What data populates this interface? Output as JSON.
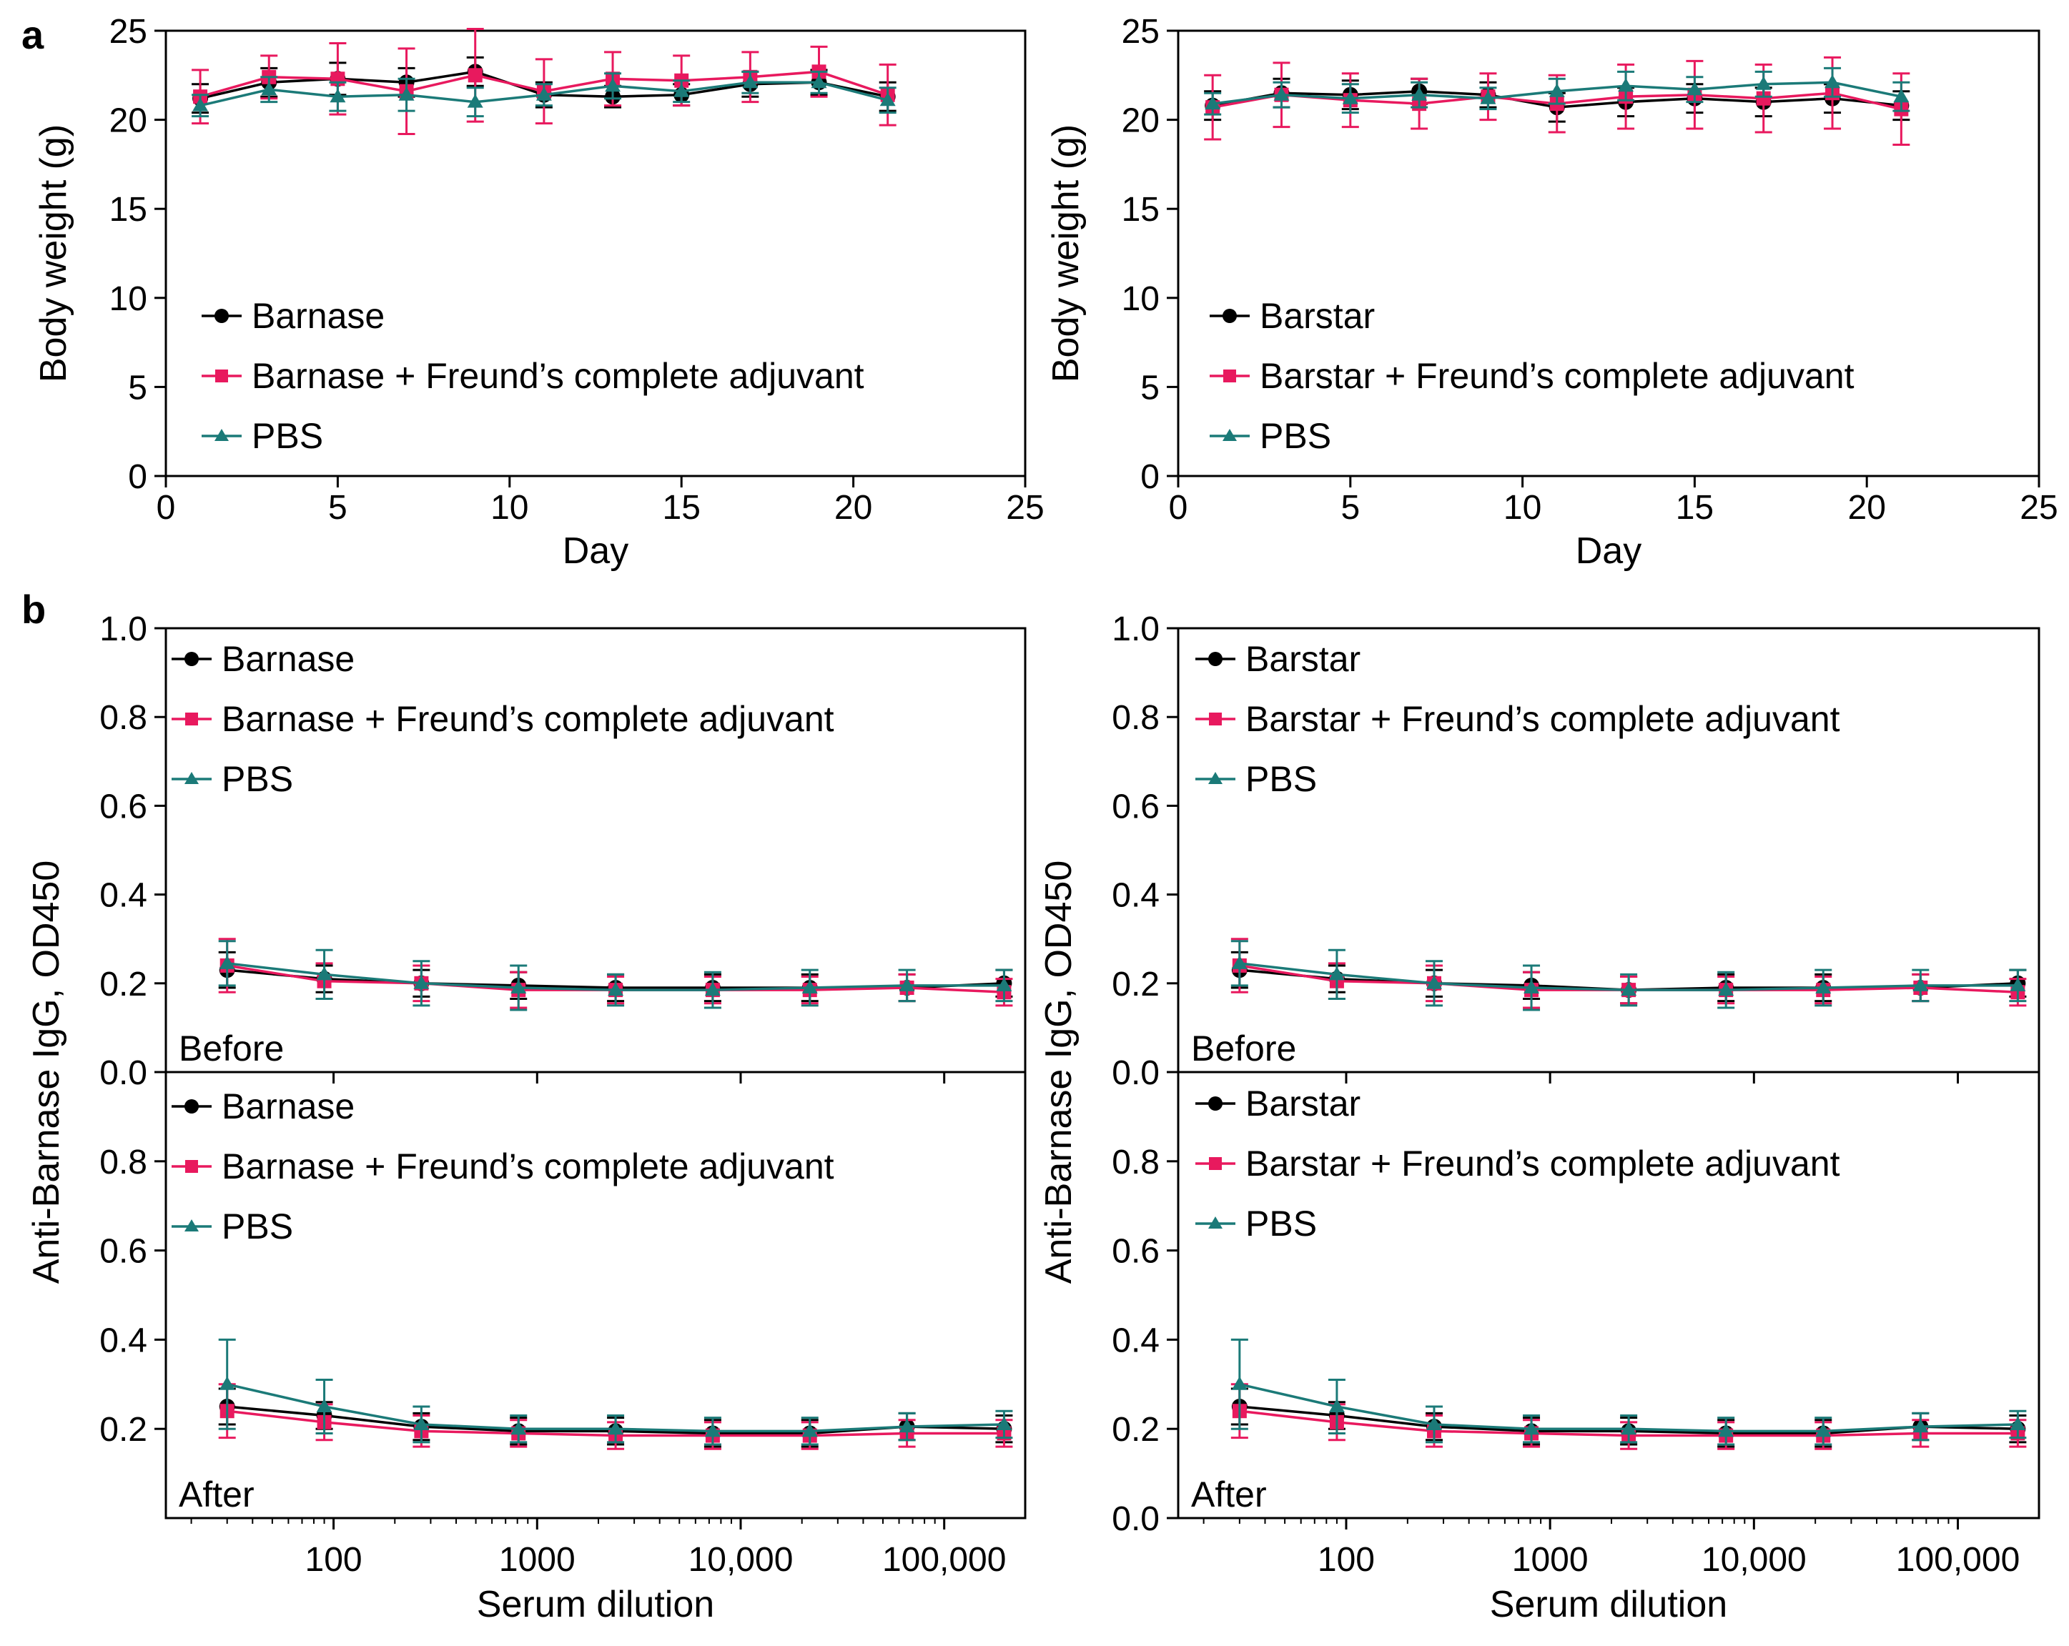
{
  "figure": {
    "panel_a_letter": "a",
    "panel_b_letter": "b"
  },
  "colors": {
    "black": "#000000",
    "magenta": "#e8195e",
    "teal": "#1b7a78",
    "axis": "#000000"
  },
  "chart_data": [
    {
      "id": "a-left",
      "type": "line",
      "xscale": "linear",
      "xlim": [
        0,
        25
      ],
      "xticks": [
        0,
        5,
        10,
        15,
        20,
        25
      ],
      "ylim": [
        0,
        25
      ],
      "yticks": [
        0,
        5,
        10,
        15,
        20,
        25
      ],
      "xlabel": "Day",
      "ylabel": "Body weight (g)",
      "legend": "bottom-left",
      "series": [
        {
          "name": "Barnase",
          "marker": "circle",
          "color": "black",
          "x": [
            1,
            3,
            5,
            7,
            9,
            11,
            13,
            15,
            17,
            19,
            21
          ],
          "y": [
            21.2,
            22.1,
            22.3,
            22.1,
            22.7,
            21.4,
            21.3,
            21.4,
            22.0,
            22.1,
            21.3
          ],
          "err": [
            0.8,
            0.8,
            0.9,
            0.8,
            0.8,
            0.7,
            0.6,
            0.6,
            0.7,
            0.7,
            0.8
          ]
        },
        {
          "name": "Barnase + Freund’s complete adjuvant",
          "marker": "square",
          "color": "magenta",
          "x": [
            1,
            3,
            5,
            7,
            9,
            11,
            13,
            15,
            17,
            19,
            21
          ],
          "y": [
            21.3,
            22.4,
            22.3,
            21.6,
            22.5,
            21.6,
            22.3,
            22.2,
            22.4,
            22.7,
            21.4
          ],
          "err": [
            1.5,
            1.2,
            2.0,
            2.4,
            2.6,
            1.8,
            1.5,
            1.4,
            1.4,
            1.4,
            1.7
          ]
        },
        {
          "name": "PBS",
          "marker": "triangle",
          "color": "teal",
          "x": [
            1,
            3,
            5,
            7,
            9,
            11,
            13,
            15,
            17,
            19,
            21
          ],
          "y": [
            20.8,
            21.7,
            21.3,
            21.4,
            21.0,
            21.4,
            21.9,
            21.6,
            22.1,
            22.1,
            21.1
          ],
          "err": [
            0.6,
            0.7,
            0.8,
            0.9,
            0.8,
            0.6,
            0.7,
            0.6,
            0.6,
            0.6,
            0.7
          ]
        }
      ],
      "legend_labels": [
        "Barnase",
        "Barnase + Freund’s complete adjuvant",
        "PBS"
      ]
    },
    {
      "id": "a-right",
      "type": "line",
      "xscale": "linear",
      "xlim": [
        0,
        25
      ],
      "xticks": [
        0,
        5,
        10,
        15,
        20,
        25
      ],
      "ylim": [
        0,
        25
      ],
      "yticks": [
        0,
        5,
        10,
        15,
        20,
        25
      ],
      "xlabel": "Day",
      "ylabel": "Body weight (g)",
      "legend": "bottom-left",
      "series": [
        {
          "name": "Barstar",
          "marker": "circle",
          "color": "black",
          "x": [
            1,
            3,
            5,
            7,
            9,
            11,
            13,
            15,
            17,
            19,
            21
          ],
          "y": [
            20.8,
            21.5,
            21.4,
            21.6,
            21.4,
            20.7,
            21.0,
            21.2,
            21.0,
            21.2,
            20.8
          ],
          "err": [
            0.8,
            0.8,
            0.8,
            0.7,
            0.7,
            0.8,
            0.8,
            0.8,
            0.8,
            0.8,
            0.8
          ]
        },
        {
          "name": "Barstar + Freund’s complete adjuvant",
          "marker": "square",
          "color": "magenta",
          "x": [
            1,
            3,
            5,
            7,
            9,
            11,
            13,
            15,
            17,
            19,
            21
          ],
          "y": [
            20.7,
            21.4,
            21.1,
            20.9,
            21.3,
            20.9,
            21.3,
            21.4,
            21.2,
            21.5,
            20.6
          ],
          "err": [
            1.8,
            1.8,
            1.5,
            1.4,
            1.3,
            1.6,
            1.8,
            1.9,
            1.9,
            2.0,
            2.0
          ]
        },
        {
          "name": "PBS",
          "marker": "triangle",
          "color": "teal",
          "x": [
            1,
            3,
            5,
            7,
            9,
            11,
            13,
            15,
            17,
            19,
            21
          ],
          "y": [
            20.9,
            21.4,
            21.2,
            21.4,
            21.2,
            21.6,
            21.9,
            21.7,
            22.0,
            22.1,
            21.3
          ],
          "err": [
            0.6,
            0.7,
            0.8,
            0.7,
            0.6,
            0.7,
            0.8,
            0.7,
            0.7,
            0.8,
            0.8
          ]
        }
      ],
      "legend_labels": [
        "Barstar",
        "Barstar + Freund’s complete adjuvant",
        "PBS"
      ]
    },
    {
      "id": "b-left-before",
      "type": "line",
      "xscale": "log",
      "xlim": [
        15,
        250000
      ],
      "xticks": [
        100,
        1000,
        10000,
        100000
      ],
      "xtick_labels": [],
      "ylim": [
        0,
        1.0
      ],
      "yticks": [
        0.0,
        0.2,
        0.4,
        0.6,
        0.8,
        1.0
      ],
      "ytick_labels": [
        "0.0",
        "0.2",
        "0.4",
        "0.6",
        "0.8",
        "1.0"
      ],
      "annotation": "Before",
      "legend": "top-left",
      "series": [
        {
          "name": "Barnase",
          "marker": "circle",
          "color": "black",
          "x": [
            30,
            90,
            270,
            810,
            2430,
            7290,
            21870,
            65610,
            196830
          ],
          "y": [
            0.23,
            0.21,
            0.2,
            0.195,
            0.19,
            0.19,
            0.19,
            0.19,
            0.2
          ],
          "err": [
            0.04,
            0.03,
            0.03,
            0.03,
            0.03,
            0.03,
            0.03,
            0.03,
            0.03
          ]
        },
        {
          "name": "Barnase + Freund’s complete adjuvant",
          "marker": "square",
          "color": "magenta",
          "x": [
            30,
            90,
            270,
            810,
            2430,
            7290,
            21870,
            65610,
            196830
          ],
          "y": [
            0.24,
            0.205,
            0.2,
            0.185,
            0.185,
            0.185,
            0.185,
            0.19,
            0.18
          ],
          "err": [
            0.06,
            0.04,
            0.04,
            0.04,
            0.03,
            0.03,
            0.03,
            0.03,
            0.03
          ]
        },
        {
          "name": "PBS",
          "marker": "triangle",
          "color": "teal",
          "x": [
            30,
            90,
            270,
            810,
            2430,
            7290,
            21870,
            65610,
            196830
          ],
          "y": [
            0.245,
            0.22,
            0.2,
            0.19,
            0.185,
            0.185,
            0.19,
            0.195,
            0.195
          ],
          "err": [
            0.05,
            0.055,
            0.05,
            0.05,
            0.035,
            0.04,
            0.04,
            0.035,
            0.035
          ]
        }
      ],
      "legend_labels": [
        "Barnase",
        "Barnase + Freund’s complete adjuvant",
        "PBS"
      ]
    },
    {
      "id": "b-left-after",
      "type": "line",
      "xscale": "log",
      "xlim": [
        15,
        250000
      ],
      "xticks": [
        100,
        1000,
        10000,
        100000
      ],
      "xtick_labels": [
        "100",
        "1000",
        "10,000",
        "100,000"
      ],
      "ylim": [
        0,
        1.0
      ],
      "yticks": [
        0.2,
        0.4,
        0.6,
        0.8
      ],
      "ytick_labels": [
        "0.2",
        "0.4",
        "0.6",
        "0.8"
      ],
      "xlabel": "Serum dilution",
      "annotation": "After",
      "legend": "top-left",
      "series": [
        {
          "name": "Barnase",
          "marker": "circle",
          "color": "black",
          "x": [
            30,
            90,
            270,
            810,
            2430,
            7290,
            21870,
            65610,
            196830
          ],
          "y": [
            0.25,
            0.23,
            0.205,
            0.195,
            0.195,
            0.19,
            0.19,
            0.205,
            0.2
          ],
          "err": [
            0.04,
            0.03,
            0.03,
            0.03,
            0.03,
            0.03,
            0.03,
            0.03,
            0.03
          ]
        },
        {
          "name": "Barnase + Freund’s complete adjuvant",
          "marker": "square",
          "color": "magenta",
          "x": [
            30,
            90,
            270,
            810,
            2430,
            7290,
            21870,
            65610,
            196830
          ],
          "y": [
            0.24,
            0.215,
            0.195,
            0.19,
            0.185,
            0.185,
            0.185,
            0.19,
            0.19
          ],
          "err": [
            0.06,
            0.04,
            0.035,
            0.03,
            0.03,
            0.03,
            0.03,
            0.03,
            0.03
          ]
        },
        {
          "name": "PBS",
          "marker": "triangle",
          "color": "teal",
          "x": [
            30,
            90,
            270,
            810,
            2430,
            7290,
            21870,
            65610,
            196830
          ],
          "y": [
            0.3,
            0.25,
            0.21,
            0.2,
            0.2,
            0.195,
            0.195,
            0.205,
            0.21
          ],
          "err": [
            0.1,
            0.06,
            0.04,
            0.03,
            0.03,
            0.03,
            0.03,
            0.03,
            0.03
          ]
        }
      ],
      "legend_labels": [
        "Barnase",
        "Barnase + Freund’s complete adjuvant",
        "PBS"
      ]
    },
    {
      "id": "b-right-before",
      "type": "line",
      "xscale": "log",
      "xlim": [
        15,
        250000
      ],
      "xticks": [
        100,
        1000,
        10000,
        100000
      ],
      "xtick_labels": [],
      "ylim": [
        0,
        1.0
      ],
      "yticks": [
        0.0,
        0.2,
        0.4,
        0.6,
        0.8,
        1.0
      ],
      "ytick_labels": [
        "0.0",
        "0.2",
        "0.4",
        "0.6",
        "0.8",
        "1.0"
      ],
      "annotation": "Before",
      "legend": "top-left",
      "series": [
        {
          "name": "Barstar",
          "marker": "circle",
          "color": "black",
          "x": [
            30,
            90,
            270,
            810,
            2430,
            7290,
            21870,
            65610,
            196830
          ],
          "y": [
            0.23,
            0.21,
            0.2,
            0.195,
            0.185,
            0.19,
            0.19,
            0.19,
            0.2
          ],
          "err": [
            0.04,
            0.03,
            0.03,
            0.03,
            0.03,
            0.03,
            0.03,
            0.03,
            0.03
          ]
        },
        {
          "name": "Barstar + Freund’s complete adjuvant",
          "marker": "square",
          "color": "magenta",
          "x": [
            30,
            90,
            270,
            810,
            2430,
            7290,
            21870,
            65610,
            196830
          ],
          "y": [
            0.24,
            0.205,
            0.2,
            0.185,
            0.185,
            0.185,
            0.185,
            0.19,
            0.18
          ],
          "err": [
            0.06,
            0.04,
            0.04,
            0.04,
            0.03,
            0.03,
            0.03,
            0.03,
            0.03
          ]
        },
        {
          "name": "PBS",
          "marker": "triangle",
          "color": "teal",
          "x": [
            30,
            90,
            270,
            810,
            2430,
            7290,
            21870,
            65610,
            196830
          ],
          "y": [
            0.245,
            0.22,
            0.2,
            0.19,
            0.185,
            0.185,
            0.19,
            0.195,
            0.195
          ],
          "err": [
            0.05,
            0.055,
            0.05,
            0.05,
            0.035,
            0.04,
            0.04,
            0.035,
            0.035
          ]
        }
      ],
      "legend_labels": [
        "Barstar",
        "Barstar + Freund’s complete adjuvant",
        "PBS"
      ]
    },
    {
      "id": "b-right-after",
      "type": "line",
      "xscale": "log",
      "xlim": [
        15,
        250000
      ],
      "xticks": [
        100,
        1000,
        10000,
        100000
      ],
      "xtick_labels": [
        "100",
        "1000",
        "10,000",
        "100,000"
      ],
      "ylim": [
        0,
        1.0
      ],
      "yticks": [
        0.0,
        0.2,
        0.4,
        0.6,
        0.8
      ],
      "ytick_labels": [
        "0.0",
        "0.2",
        "0.4",
        "0.6",
        "0.8"
      ],
      "xlabel": "Serum dilution",
      "annotation": "After",
      "legend": "top-left",
      "series": [
        {
          "name": "Barstar",
          "marker": "circle",
          "color": "black",
          "x": [
            30,
            90,
            270,
            810,
            2430,
            7290,
            21870,
            65610,
            196830
          ],
          "y": [
            0.25,
            0.23,
            0.205,
            0.195,
            0.195,
            0.19,
            0.19,
            0.205,
            0.2
          ],
          "err": [
            0.04,
            0.03,
            0.03,
            0.03,
            0.03,
            0.03,
            0.03,
            0.03,
            0.03
          ]
        },
        {
          "name": "Barstar + Freund’s complete adjuvant",
          "marker": "square",
          "color": "magenta",
          "x": [
            30,
            90,
            270,
            810,
            2430,
            7290,
            21870,
            65610,
            196830
          ],
          "y": [
            0.24,
            0.215,
            0.195,
            0.19,
            0.185,
            0.185,
            0.185,
            0.19,
            0.19
          ],
          "err": [
            0.06,
            0.04,
            0.035,
            0.03,
            0.03,
            0.03,
            0.03,
            0.03,
            0.03
          ]
        },
        {
          "name": "PBS",
          "marker": "triangle",
          "color": "teal",
          "x": [
            30,
            90,
            270,
            810,
            2430,
            7290,
            21870,
            65610,
            196830
          ],
          "y": [
            0.3,
            0.25,
            0.21,
            0.2,
            0.2,
            0.195,
            0.195,
            0.205,
            0.21
          ],
          "err": [
            0.1,
            0.06,
            0.04,
            0.03,
            0.03,
            0.03,
            0.03,
            0.03,
            0.03
          ]
        }
      ],
      "legend_labels": [
        "Barstar",
        "Barstar + Freund’s complete adjuvant",
        "PBS"
      ]
    }
  ],
  "panel_b_ylabel": "Anti-Barnase IgG, OD450"
}
